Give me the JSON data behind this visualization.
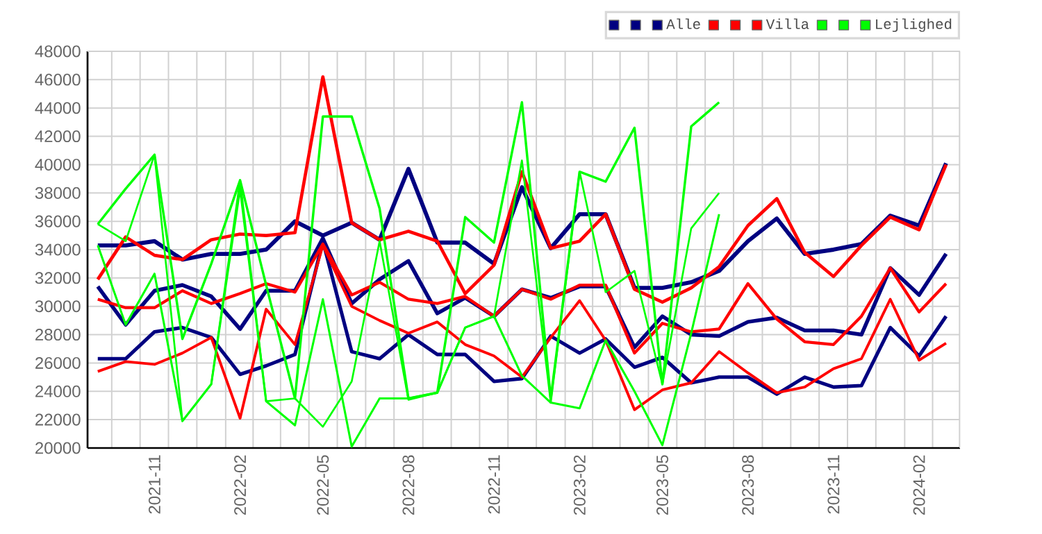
{
  "chart_data": {
    "type": "line",
    "x": [
      "2021-09",
      "2021-10",
      "2021-11",
      "2021-12",
      "2022-01",
      "2022-02",
      "2022-03",
      "2022-04",
      "2022-05",
      "2022-06",
      "2022-07",
      "2022-08",
      "2022-09",
      "2022-10",
      "2022-11",
      "2022-12",
      "2023-01",
      "2023-02",
      "2023-03",
      "2023-04",
      "2023-05",
      "2023-06",
      "2023-07",
      "2023-08",
      "2023-09",
      "2023-10",
      "2023-11",
      "2023-12",
      "2024-01",
      "2024-02",
      "2024-03"
    ],
    "series": [
      {
        "color": "#000080",
        "values": [
          34300,
          34300,
          34600,
          33300,
          33700,
          33700,
          34000,
          36000,
          35000,
          35900,
          34700,
          39700,
          34500,
          34500,
          33000,
          38400,
          34100,
          36500,
          36500,
          31300,
          31300,
          31700,
          32500,
          34600,
          36200,
          33700,
          34000,
          34400,
          36400,
          35700,
          40100
        ]
      },
      {
        "color": "#000080",
        "values": [
          31400,
          28700,
          31100,
          31500,
          30700,
          28400,
          31100,
          31100,
          34800,
          30200,
          31900,
          33200,
          29500,
          30600,
          29300,
          31200,
          30600,
          31400,
          31400,
          27100,
          29300,
          28000,
          27900,
          28900,
          29200,
          28300,
          28300,
          28000,
          32700,
          30800,
          33700
        ]
      },
      {
        "name": "Alle",
        "color": "#000080",
        "values": [
          26300,
          26300,
          28200,
          28500,
          27800,
          25200,
          25800,
          26600,
          34600,
          26800,
          26300,
          28000,
          26600,
          26600,
          24700,
          24900,
          27900,
          26700,
          27700,
          25700,
          26400,
          24600,
          25000,
          25000,
          23800,
          25000,
          24300,
          24400,
          28500,
          26500,
          29300
        ]
      },
      {
        "color": "#ff0000",
        "values": [
          31900,
          34900,
          33600,
          33300,
          34700,
          35100,
          35000,
          35200,
          46200,
          35900,
          34700,
          35300,
          34600,
          30900,
          32900,
          39500,
          34100,
          34600,
          36500,
          31200,
          30300,
          31300,
          32800,
          35700,
          37600,
          33800,
          32100,
          34300,
          36300,
          35400,
          40000
        ]
      },
      {
        "color": "#ff0000",
        "values": [
          30500,
          29900,
          29900,
          31100,
          30200,
          30900,
          31600,
          31000,
          34400,
          30800,
          31700,
          30500,
          30200,
          30700,
          29300,
          31200,
          30500,
          31500,
          31500,
          26700,
          28800,
          28200,
          28400,
          31600,
          29100,
          27500,
          27300,
          29300,
          32700,
          29600,
          31600
        ]
      },
      {
        "name": "Villa",
        "color": "#ff0000",
        "values": [
          25400,
          26100,
          25900,
          26700,
          27800,
          22100,
          29800,
          27300,
          34300,
          30000,
          29000,
          28100,
          28900,
          27300,
          26500,
          25000,
          27800,
          30400,
          27600,
          22700,
          24100,
          24600,
          26800,
          25300,
          23900,
          24300,
          25600,
          26300,
          30500,
          26200,
          27400
        ]
      },
      {
        "color": "#00ff00",
        "values": [
          35800,
          38300,
          40700,
          27700,
          33000,
          38900,
          31500,
          23500,
          43400,
          43400,
          36900,
          23500,
          23900,
          36300,
          34500,
          44400,
          23500,
          39500,
          38800,
          42600,
          24500,
          42700,
          44400,
          null,
          null,
          null,
          null,
          null,
          null,
          null,
          null
        ]
      },
      {
        "color": "#00ff00",
        "values": [
          34300,
          28700,
          32300,
          21900,
          24500,
          38300,
          23300,
          21600,
          30500,
          20100,
          23500,
          23500,
          23900,
          28500,
          29300,
          25100,
          23200,
          22800,
          27600,
          24000,
          20200,
          28100,
          36500,
          null,
          null,
          null,
          null,
          null,
          null,
          null,
          null
        ]
      },
      {
        "name": "Lejlighed",
        "color": "#00ff00",
        "values": [
          35800,
          34600,
          40700,
          21900,
          24500,
          38900,
          23300,
          23500,
          21500,
          24700,
          34600,
          23400,
          23900,
          28500,
          29300,
          40300,
          23200,
          39500,
          31000,
          32500,
          24500,
          35500,
          38000,
          null,
          null,
          null,
          null,
          null,
          null,
          null,
          null
        ]
      }
    ],
    "xlim": [
      "2021-08-21",
      "2024-03-16"
    ],
    "xticks": [
      "2021-11",
      "2022-02",
      "2022-05",
      "2022-08",
      "2022-11",
      "2023-02",
      "2023-05",
      "2023-08",
      "2023-11",
      "2024-02"
    ],
    "ylim": [
      20000,
      48000
    ],
    "yticks": [
      20000,
      22000,
      24000,
      26000,
      28000,
      30000,
      32000,
      34000,
      36000,
      38000,
      40000,
      42000,
      44000,
      46000,
      48000
    ],
    "grid": true,
    "legend": "top right"
  }
}
